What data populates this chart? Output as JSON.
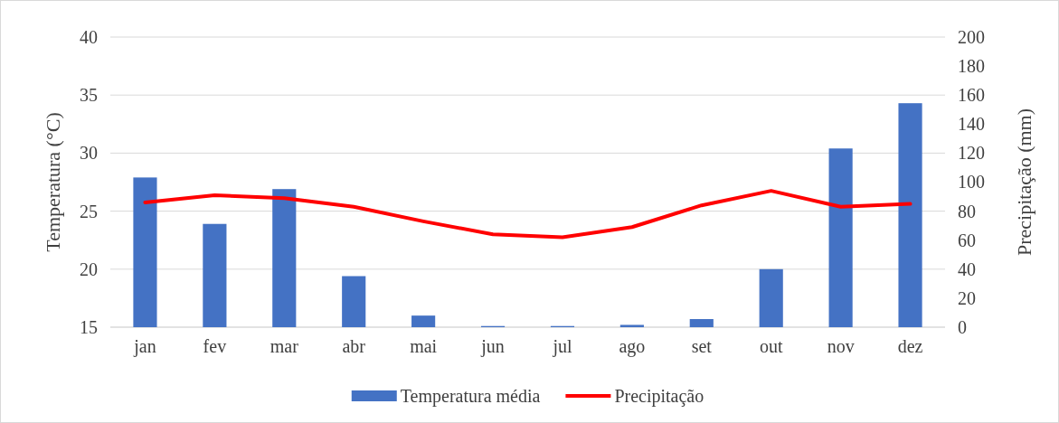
{
  "chart_data": {
    "type": "bar",
    "categories": [
      "jan",
      "fev",
      "mar",
      "abr",
      "mai",
      "jun",
      "jul",
      "ago",
      "set",
      "out",
      "nov",
      "dez"
    ],
    "series": [
      {
        "name": "Temperatura média",
        "color": "#4472c4",
        "values": [
          27.9,
          23.9,
          26.9,
          19.4,
          16.0,
          15.1,
          15.1,
          15.2,
          15.7,
          20.0,
          30.4,
          34.3
        ]
      },
      {
        "name": "Precipitação",
        "type": "line",
        "axis": "y2",
        "color": "#ff0000",
        "values": [
          86,
          91,
          89,
          83,
          73,
          64,
          62,
          69,
          84,
          94,
          83,
          85
        ]
      }
    ],
    "ylabel": "Temperatura (°C)",
    "y2label": "Precipitação (mm)",
    "ylim": [
      15,
      40
    ],
    "yticks": [
      15,
      20,
      25,
      30,
      35,
      40
    ],
    "y2lim": [
      0,
      200
    ],
    "y2ticks": [
      0,
      20,
      40,
      60,
      80,
      100,
      120,
      140,
      160,
      180,
      200
    ],
    "grid": "y",
    "legend": "bottom",
    "marker": "none",
    "line_style": "solid"
  }
}
